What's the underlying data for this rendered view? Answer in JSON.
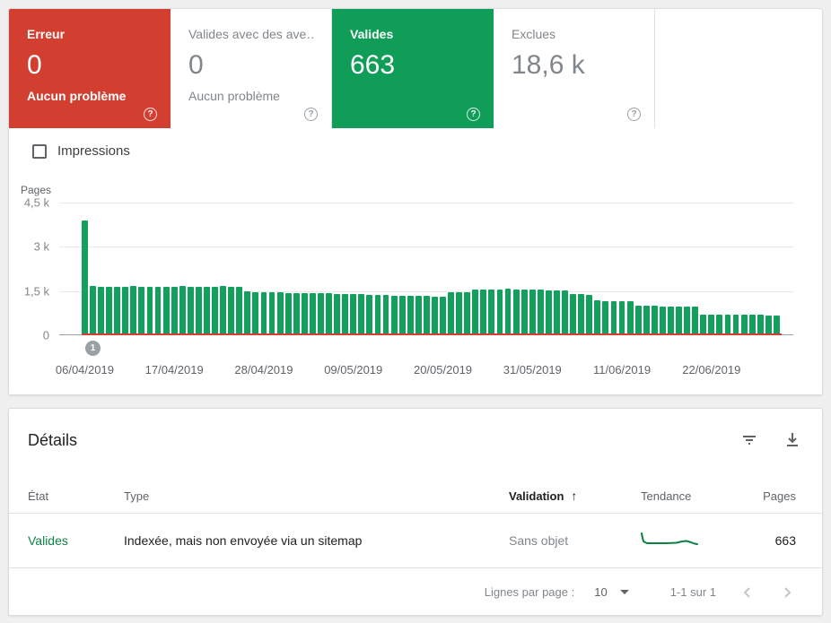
{
  "cards": [
    {
      "label": "Erreur",
      "value": "0",
      "subtitle": "Aucun problème"
    },
    {
      "label": "Valides avec des ave…",
      "value": "0",
      "subtitle": "Aucun problème"
    },
    {
      "label": "Valides",
      "value": "663",
      "subtitle": ""
    },
    {
      "label": "Exclues",
      "value": "18,6 k",
      "subtitle": ""
    }
  ],
  "help_glyph": "?",
  "impressions": {
    "label": "Impressions",
    "checked": false
  },
  "chart_data": {
    "type": "bar",
    "ylabel": "Pages",
    "ylim": [
      0,
      4500
    ],
    "grid": true,
    "y_ticks": [
      {
        "label": "4,5 k",
        "value": 4500
      },
      {
        "label": "3 k",
        "value": 3000
      },
      {
        "label": "1,5 k",
        "value": 1500
      },
      {
        "label": "0",
        "value": 0
      }
    ],
    "x_tick_labels": [
      "06/04/2019",
      "17/04/2019",
      "28/04/2019",
      "09/05/2019",
      "20/05/2019",
      "31/05/2019",
      "11/06/2019",
      "22/06/2019"
    ],
    "x_tick_indices": [
      0,
      11,
      22,
      33,
      44,
      55,
      66,
      77
    ],
    "annotation": {
      "label": "1",
      "bar_index": 1
    },
    "series": [
      {
        "name": "Valides",
        "color": "#12a05c",
        "values": [
          3900,
          1660,
          1650,
          1650,
          1640,
          1650,
          1660,
          1650,
          1650,
          1640,
          1650,
          1650,
          1660,
          1650,
          1640,
          1650,
          1650,
          1660,
          1650,
          1650,
          1480,
          1470,
          1460,
          1450,
          1450,
          1440,
          1440,
          1430,
          1430,
          1420,
          1420,
          1410,
          1400,
          1400,
          1390,
          1380,
          1370,
          1360,
          1350,
          1350,
          1340,
          1330,
          1330,
          1320,
          1320,
          1450,
          1470,
          1460,
          1540,
          1550,
          1560,
          1560,
          1570,
          1560,
          1550,
          1550,
          1540,
          1530,
          1530,
          1520,
          1400,
          1390,
          1380,
          1180,
          1170,
          1170,
          1160,
          1160,
          1000,
          990,
          990,
          980,
          980,
          970,
          970,
          960,
          700,
          700,
          690,
          700,
          690,
          690,
          700,
          690,
          680,
          660
        ]
      },
      {
        "name": "Erreur",
        "color": "#d23f31",
        "constant_value": 0
      }
    ]
  },
  "details": {
    "title": "Détails",
    "columns": {
      "etat": "État",
      "type": "Type",
      "validation": "Validation",
      "tendance": "Tendance",
      "pages": "Pages"
    },
    "sort": {
      "column": "Validation",
      "direction_glyph": "↑"
    },
    "rows": [
      {
        "etat": "Valides",
        "type": "Indexée, mais non envoyée via un sitemap",
        "validation": "Sans objet",
        "pages": "663",
        "trend_color": "#0b8043",
        "trend_points": [
          [
            1,
            1
          ],
          [
            2,
            6
          ],
          [
            3,
            10
          ],
          [
            7,
            12
          ],
          [
            28,
            12
          ],
          [
            40,
            11.5
          ],
          [
            46,
            10
          ],
          [
            51,
            9.5
          ],
          [
            56,
            11
          ],
          [
            60,
            12.5
          ],
          [
            63,
            13
          ]
        ]
      }
    ],
    "pagination": {
      "rows_per_page_label": "Lignes par page :",
      "rows_per_page": "10",
      "range_label": "1-1 sur 1",
      "prev_glyph": "‹",
      "next_glyph": "›"
    }
  },
  "colors": {
    "error_red": "#d23f31",
    "valid_green": "#0f9d58",
    "bar_green": "#12a05c",
    "trend_green": "#0b8043"
  }
}
